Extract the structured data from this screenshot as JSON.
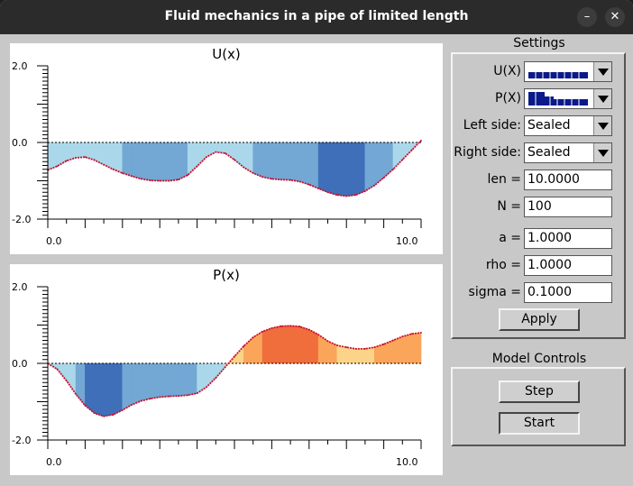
{
  "window": {
    "title": "Fluid mechanics in a pipe of limited length"
  },
  "plots": {
    "u": {
      "title": "U(x)",
      "y_top": "2.0",
      "y_mid": "0.0",
      "y_bot": "-2.0",
      "x_left": "0.0",
      "x_right": "10.0"
    },
    "p": {
      "title": "P(x)",
      "y_top": "2.0",
      "y_mid": "0.0",
      "y_bot": "-2.0",
      "x_left": "0.0",
      "x_right": "10.0"
    }
  },
  "settings": {
    "title": "Settings",
    "ux_label": "U(X)",
    "px_label": "P(X)",
    "left_side_label": "Left side:",
    "left_side_value": "Sealed",
    "right_side_label": "Right side:",
    "right_side_value": "Sealed",
    "len_label": "len =",
    "len_value": "10.0000",
    "n_label": "N =",
    "n_value": "100",
    "a_label": "a =",
    "a_value": "1.0000",
    "rho_label": "rho =",
    "rho_value": "1.0000",
    "sigma_label": "sigma =",
    "sigma_value": "0.1000",
    "apply_label": "Apply"
  },
  "model_controls": {
    "title": "Model Controls",
    "step_label": "Step",
    "start_label": "Start"
  },
  "colors": {
    "title_bar": "#2b2b2b",
    "window_bg": "#c8c8c8",
    "curve": "#c8102e",
    "light_blue": "#aad8ea",
    "mid_blue": "#73a7d4",
    "dark_blue": "#3f6fb8",
    "light_orange": "#fbd48a",
    "mid_orange": "#fba55a",
    "dark_orange": "#f06e3c",
    "swatch_blue": "#0a1a8a"
  },
  "chart_data": [
    {
      "type": "area",
      "title": "U(x)",
      "xlim": [
        0,
        10
      ],
      "ylim": [
        -2,
        2
      ],
      "x": [
        0,
        0.25,
        0.5,
        0.75,
        1,
        1.25,
        1.5,
        1.75,
        2,
        2.25,
        2.5,
        2.75,
        3,
        3.25,
        3.5,
        3.75,
        4,
        4.25,
        4.5,
        4.75,
        5,
        5.25,
        5.5,
        5.75,
        6,
        6.25,
        6.5,
        6.75,
        7,
        7.25,
        7.5,
        7.75,
        8,
        8.25,
        8.5,
        8.75,
        9,
        9.25,
        9.5,
        9.75,
        10
      ],
      "y": [
        -0.72,
        -0.62,
        -0.48,
        -0.4,
        -0.38,
        -0.46,
        -0.58,
        -0.7,
        -0.8,
        -0.88,
        -0.95,
        -0.99,
        -1,
        -1,
        -0.97,
        -0.85,
        -0.62,
        -0.38,
        -0.25,
        -0.28,
        -0.45,
        -0.65,
        -0.8,
        -0.9,
        -0.95,
        -0.97,
        -0.98,
        -1.02,
        -1.1,
        -1.2,
        -1.3,
        -1.37,
        -1.4,
        -1.37,
        -1.27,
        -1.12,
        -0.92,
        -0.7,
        -0.45,
        -0.2,
        0.05
      ]
    },
    {
      "type": "area",
      "title": "P(x)",
      "xlim": [
        0,
        10
      ],
      "ylim": [
        -2,
        2
      ],
      "x": [
        0,
        0.25,
        0.5,
        0.75,
        1,
        1.25,
        1.5,
        1.75,
        2,
        2.25,
        2.5,
        2.75,
        3,
        3.25,
        3.5,
        3.75,
        4,
        4.25,
        4.5,
        4.75,
        5,
        5.25,
        5.5,
        5.75,
        6,
        6.25,
        6.5,
        6.75,
        7,
        7.25,
        7.5,
        7.75,
        8,
        8.25,
        8.5,
        8.75,
        9,
        9.25,
        9.5,
        9.75,
        10
      ],
      "y": [
        0,
        -0.15,
        -0.45,
        -0.8,
        -1.1,
        -1.3,
        -1.38,
        -1.34,
        -1.22,
        -1.08,
        -0.98,
        -0.92,
        -0.88,
        -0.86,
        -0.85,
        -0.83,
        -0.78,
        -0.62,
        -0.38,
        -0.1,
        0.18,
        0.45,
        0.68,
        0.83,
        0.92,
        0.97,
        0.98,
        0.96,
        0.88,
        0.75,
        0.58,
        0.47,
        0.42,
        0.38,
        0.38,
        0.42,
        0.5,
        0.6,
        0.7,
        0.77,
        0.8
      ]
    }
  ]
}
